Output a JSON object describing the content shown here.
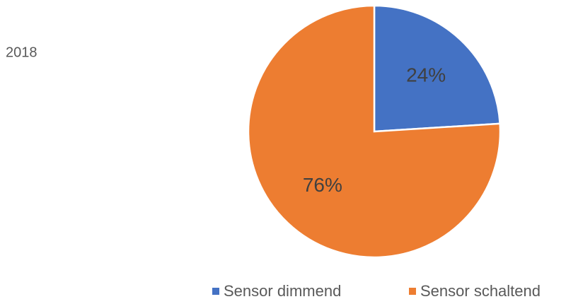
{
  "chart_data": {
    "type": "pie",
    "title": "2018",
    "categories": [
      "Sensor dimmend",
      "Sensor schaltend"
    ],
    "values": [
      24,
      76
    ],
    "value_labels": [
      "24%",
      "76%"
    ],
    "colors": [
      "#4472c4",
      "#ed7d31"
    ]
  }
}
